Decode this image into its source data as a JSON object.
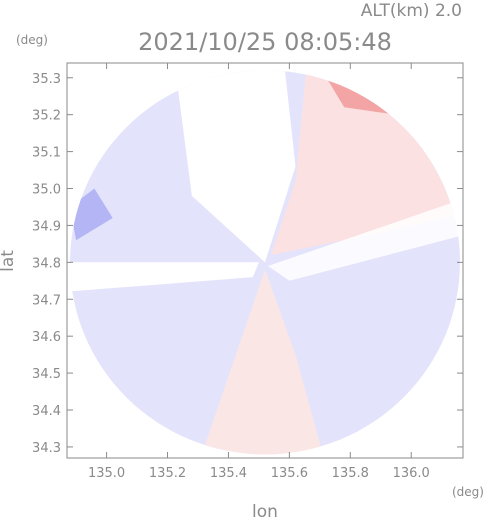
{
  "header": {
    "altitude_label": "ALT(km) 2.0",
    "timestamp": "2021/10/25 08:05:48"
  },
  "chart_data": {
    "type": "heatmap",
    "title": "2021/10/25 08:05:48",
    "subtitle": "ALT(km) 2.0",
    "xlabel": "lon",
    "ylabel": "lat",
    "x_unit": "(deg)",
    "y_unit": "(deg)",
    "xlim": [
      134.87,
      136.17
    ],
    "ylim": [
      34.27,
      35.34
    ],
    "x_ticks": [
      "135.0",
      "135.2",
      "135.4",
      "135.6",
      "135.8",
      "136.0"
    ],
    "y_ticks": [
      "34.3",
      "34.4",
      "34.5",
      "34.6",
      "34.7",
      "34.8",
      "34.9",
      "35.0",
      "35.1",
      "35.2",
      "35.3"
    ],
    "radar_center": {
      "lon": 135.52,
      "lat": 34.8
    },
    "radar_radius_lon": 0.64,
    "radar_radius_lat": 0.52,
    "colors": {
      "approaching": "#8e8ef0",
      "receding": "#f08c8c",
      "neutral": "#ffffff",
      "axis": "#8a8a8a"
    }
  }
}
